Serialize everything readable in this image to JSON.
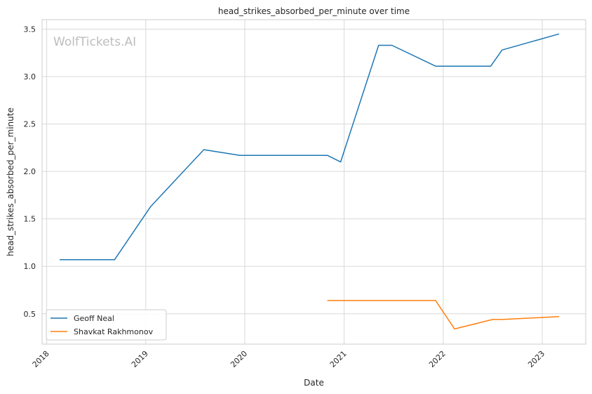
{
  "chart_data": {
    "type": "line",
    "title": "head_strikes_absorbed_per_minute over time",
    "xlabel": "Date",
    "ylabel": "head_strikes_absorbed_per_minute",
    "watermark": "WolfTickets.AI",
    "x_ticks": [
      "2018",
      "2019",
      "2020",
      "2021",
      "2022",
      "2023"
    ],
    "y_ticks": [
      "0.5",
      "1.0",
      "1.5",
      "2.0",
      "2.5",
      "3.0",
      "3.5"
    ],
    "xlim": [
      "2017-12-15",
      "2023-06-10"
    ],
    "ylim": [
      0.18,
      3.6
    ],
    "grid": true,
    "legend_position": "lower-left",
    "series": [
      {
        "name": "Geoff Neal",
        "color": "#1f77b4",
        "points": [
          [
            "2018-02-18",
            1.07
          ],
          [
            "2018-09-08",
            1.07
          ],
          [
            "2019-01-19",
            1.63
          ],
          [
            "2019-08-03",
            2.23
          ],
          [
            "2019-12-14",
            2.17
          ],
          [
            "2020-10-31",
            2.17
          ],
          [
            "2020-12-19",
            2.1
          ],
          [
            "2021-05-08",
            3.33
          ],
          [
            "2021-06-26",
            3.33
          ],
          [
            "2021-12-04",
            3.11
          ],
          [
            "2022-06-25",
            3.11
          ],
          [
            "2022-08-06",
            3.28
          ],
          [
            "2023-03-04",
            3.45
          ]
        ]
      },
      {
        "name": "Shavkat Rakhmonov",
        "color": "#ff7f0e",
        "points": [
          [
            "2020-10-31",
            0.64
          ],
          [
            "2021-12-04",
            0.64
          ],
          [
            "2022-02-12",
            0.34
          ],
          [
            "2022-07-02",
            0.44
          ],
          [
            "2022-08-06",
            0.44
          ],
          [
            "2023-03-04",
            0.47
          ]
        ]
      }
    ]
  }
}
